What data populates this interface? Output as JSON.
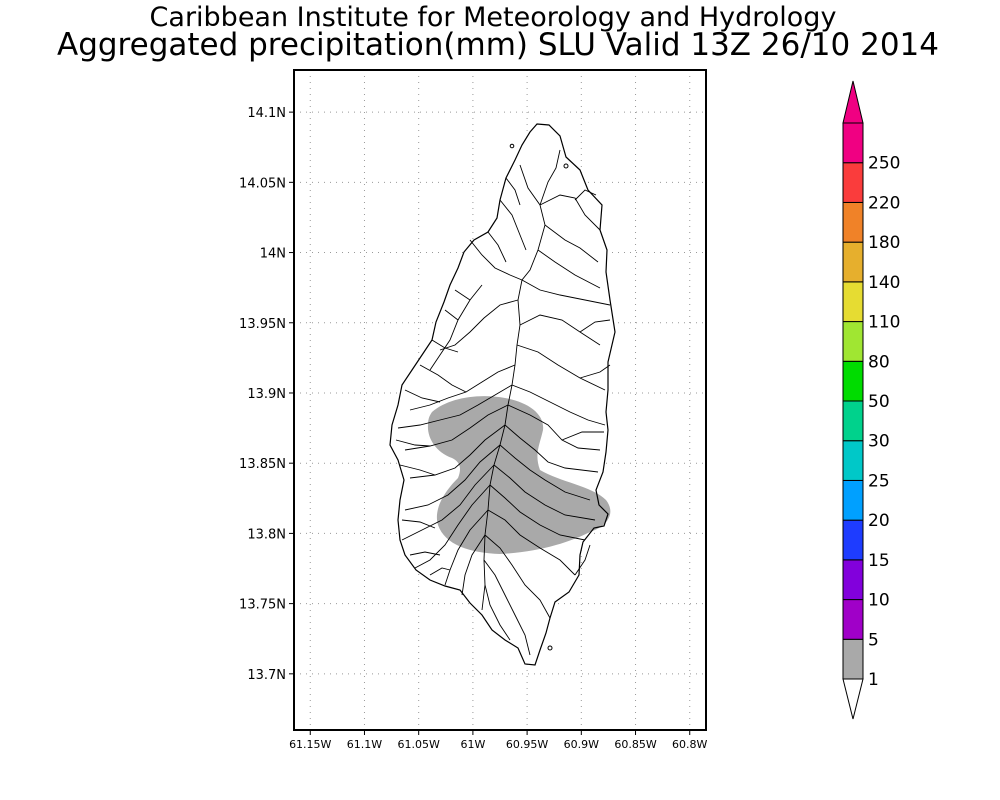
{
  "header": {
    "institution": "Caribbean Institute for Meteorology and Hydrology",
    "product": "Aggregated precipitation(mm) SLU Valid 13Z 26/10 2014"
  },
  "map": {
    "lat_range": [
      13.66,
      14.13
    ],
    "lon_range": [
      -61.165,
      -60.785
    ],
    "lat_ticks": [
      {
        "value": 14.1,
        "label": "14.1N"
      },
      {
        "value": 14.05,
        "label": "14.05N"
      },
      {
        "value": 14.0,
        "label": "14N"
      },
      {
        "value": 13.95,
        "label": "13.95N"
      },
      {
        "value": 13.9,
        "label": "13.9N"
      },
      {
        "value": 13.85,
        "label": "13.85N"
      },
      {
        "value": 13.8,
        "label": "13.8N"
      },
      {
        "value": 13.75,
        "label": "13.75N"
      },
      {
        "value": 13.7,
        "label": "13.7N"
      }
    ],
    "lon_ticks": [
      {
        "value": -61.15,
        "label": "61.15W"
      },
      {
        "value": -61.1,
        "label": "61.1W"
      },
      {
        "value": -61.05,
        "label": "61.05W"
      },
      {
        "value": -61.0,
        "label": "61W"
      },
      {
        "value": -60.95,
        "label": "60.95W"
      },
      {
        "value": -60.9,
        "label": "60.9W"
      },
      {
        "value": -60.85,
        "label": "60.85W"
      },
      {
        "value": -60.8,
        "label": "60.8W"
      }
    ],
    "gridlines": true,
    "precip_region_class": "1-5 mm",
    "precip_region_color": "#a9a9a9"
  },
  "legend": {
    "bins": [
      {
        "label": "1",
        "color": "#a9a9a9"
      },
      {
        "label": "5",
        "color": "#a000c8"
      },
      {
        "label": "10",
        "color": "#8200dc"
      },
      {
        "label": "15",
        "color": "#1e3cff"
      },
      {
        "label": "20",
        "color": "#00a0ff"
      },
      {
        "label": "25",
        "color": "#00c8c8"
      },
      {
        "label": "30",
        "color": "#00d28c"
      },
      {
        "label": "50",
        "color": "#00dc00"
      },
      {
        "label": "80",
        "color": "#a0e632"
      },
      {
        "label": "110",
        "color": "#e6dc32"
      },
      {
        "label": "140",
        "color": "#e6af2d"
      },
      {
        "label": "180",
        "color": "#f08228"
      },
      {
        "label": "220",
        "color": "#fa3c3c"
      },
      {
        "label": "250",
        "color": "#f00082"
      }
    ],
    "under_color": "#ffffff",
    "over_color": "#f00082"
  }
}
